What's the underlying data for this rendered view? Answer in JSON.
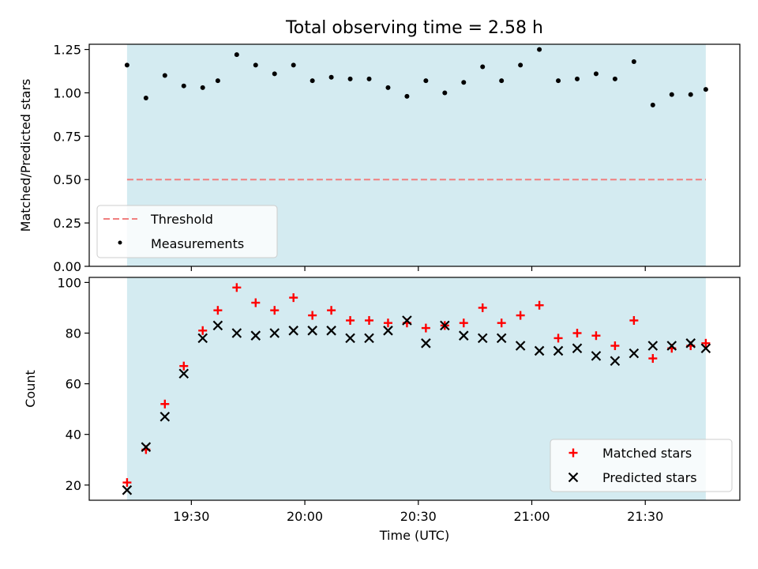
{
  "title": "Total observing time = 2.58 h",
  "colors": {
    "observing_band": "#d4ebf1",
    "threshold": "#f07f7f",
    "measurement": "#000000",
    "matched": "#ff0000",
    "predicted": "#000000"
  },
  "chart_data": [
    {
      "type": "scatter",
      "ylabel": "Matched/Predicted stars",
      "ylim": [
        0,
        1.28
      ],
      "yticks": [
        "0.00",
        "0.25",
        "0.50",
        "0.75",
        "1.00",
        "1.25"
      ],
      "xlim": [
        "19:03",
        "21:55"
      ],
      "shaded_band": [
        "19:13",
        "21:46"
      ],
      "threshold": 0.5,
      "legend": {
        "placement": "lower-left",
        "entries": [
          "Threshold",
          "Measurements"
        ]
      },
      "series": [
        {
          "name": "Measurements",
          "x": [
            "19:13",
            "19:18",
            "19:23",
            "19:28",
            "19:33",
            "19:37",
            "19:42",
            "19:47",
            "19:52",
            "19:57",
            "20:02",
            "20:07",
            "20:12",
            "20:17",
            "20:22",
            "20:27",
            "20:32",
            "20:37",
            "20:42",
            "20:47",
            "20:52",
            "20:57",
            "21:02",
            "21:07",
            "21:12",
            "21:17",
            "21:22",
            "21:27",
            "21:32",
            "21:37",
            "21:42",
            "21:46"
          ],
          "y": [
            1.16,
            0.97,
            1.1,
            1.04,
            1.03,
            1.07,
            1.22,
            1.16,
            1.11,
            1.16,
            1.07,
            1.09,
            1.08,
            1.08,
            1.03,
            0.98,
            1.07,
            1.0,
            1.06,
            1.15,
            1.07,
            1.16,
            1.25,
            1.07,
            1.08,
            1.11,
            1.08,
            1.18,
            0.93,
            0.99,
            0.99,
            1.02
          ]
        }
      ]
    },
    {
      "type": "scatter",
      "xlabel": "Time (UTC)",
      "ylabel": "Count",
      "ylim": [
        14,
        102
      ],
      "yticks": [
        "20",
        "40",
        "60",
        "80",
        "100"
      ],
      "xlim": [
        "19:03",
        "21:55"
      ],
      "xticks": [
        "19:30",
        "20:00",
        "20:30",
        "21:00",
        "21:30"
      ],
      "shaded_band": [
        "19:13",
        "21:46"
      ],
      "legend": {
        "placement": "lower-right",
        "entries": [
          "Matched stars",
          "Predicted stars"
        ]
      },
      "x": [
        "19:13",
        "19:18",
        "19:23",
        "19:28",
        "19:33",
        "19:37",
        "19:42",
        "19:47",
        "19:52",
        "19:57",
        "20:02",
        "20:07",
        "20:12",
        "20:17",
        "20:22",
        "20:27",
        "20:32",
        "20:37",
        "20:42",
        "20:47",
        "20:52",
        "20:57",
        "21:02",
        "21:07",
        "21:12",
        "21:17",
        "21:22",
        "21:27",
        "21:32",
        "21:37",
        "21:42",
        "21:46"
      ],
      "series": [
        {
          "name": "Matched stars",
          "values": [
            21,
            34,
            52,
            67,
            81,
            89,
            98,
            92,
            89,
            94,
            87,
            89,
            85,
            85,
            84,
            84,
            82,
            83,
            84,
            90,
            84,
            87,
            91,
            78,
            80,
            79,
            75,
            85,
            70,
            74,
            75,
            76
          ]
        },
        {
          "name": "Predicted stars",
          "values": [
            18,
            35,
            47,
            64,
            78,
            83,
            80,
            79,
            80,
            81,
            81,
            81,
            78,
            78,
            81,
            85,
            76,
            83,
            79,
            78,
            78,
            75,
            73,
            73,
            74,
            71,
            69,
            72,
            75,
            75,
            76,
            74
          ]
        }
      ]
    }
  ]
}
